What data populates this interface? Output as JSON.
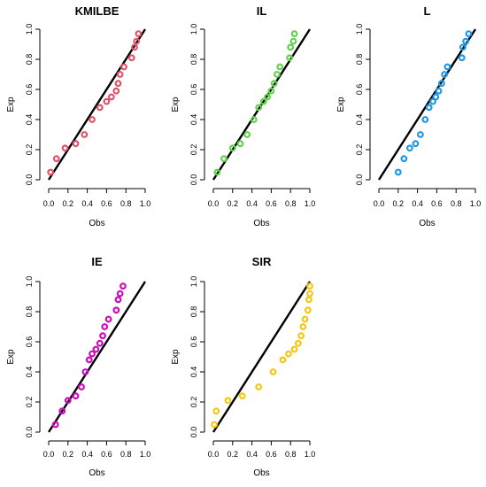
{
  "chart_data": [
    {
      "type": "scatter",
      "title": "KMILBE",
      "xlabel": "Obs",
      "ylabel": "Exp",
      "xlim": [
        0,
        1
      ],
      "ylim": [
        0,
        1
      ],
      "xticks": [
        "0.0",
        "0.2",
        "0.4",
        "0.6",
        "0.8",
        "1.0"
      ],
      "yticks": [
        "0.0",
        "0.2",
        "0.4",
        "0.6",
        "0.8",
        "1.0"
      ],
      "color": "#df536b",
      "reference_line": {
        "from": [
          0,
          0
        ],
        "to": [
          1,
          1
        ]
      },
      "points": {
        "x": [
          0.02,
          0.08,
          0.17,
          0.28,
          0.37,
          0.45,
          0.53,
          0.6,
          0.65,
          0.7,
          0.72,
          0.74,
          0.78,
          0.86,
          0.89,
          0.91,
          0.93
        ],
        "y": [
          0.05,
          0.14,
          0.21,
          0.24,
          0.3,
          0.4,
          0.48,
          0.52,
          0.55,
          0.59,
          0.64,
          0.7,
          0.75,
          0.81,
          0.88,
          0.92,
          0.97
        ]
      }
    },
    {
      "type": "scatter",
      "title": "IL",
      "xlabel": "Obs",
      "ylabel": "Exp",
      "xlim": [
        0,
        1
      ],
      "ylim": [
        0,
        1
      ],
      "xticks": [
        "0.0",
        "0.2",
        "0.4",
        "0.6",
        "0.8",
        "1.0"
      ],
      "yticks": [
        "0.0",
        "0.2",
        "0.4",
        "0.6",
        "0.8",
        "1.0"
      ],
      "color": "#61d04f",
      "reference_line": {
        "from": [
          0,
          0
        ],
        "to": [
          1,
          1
        ]
      },
      "points": {
        "x": [
          0.04,
          0.11,
          0.2,
          0.28,
          0.35,
          0.42,
          0.47,
          0.52,
          0.56,
          0.6,
          0.63,
          0.66,
          0.69,
          0.79,
          0.8,
          0.83,
          0.84
        ],
        "y": [
          0.05,
          0.14,
          0.21,
          0.24,
          0.3,
          0.4,
          0.48,
          0.52,
          0.55,
          0.59,
          0.64,
          0.7,
          0.75,
          0.81,
          0.88,
          0.92,
          0.97
        ]
      }
    },
    {
      "type": "scatter",
      "title": "L",
      "xlabel": "Obs",
      "ylabel": "Exp",
      "xlim": [
        0,
        1
      ],
      "ylim": [
        0,
        1
      ],
      "xticks": [
        "0.0",
        "0.2",
        "0.4",
        "0.6",
        "0.8",
        "1.0"
      ],
      "yticks": [
        "0.0",
        "0.2",
        "0.4",
        "0.6",
        "0.8",
        "1.0"
      ],
      "color": "#2297e6",
      "reference_line": {
        "from": [
          0,
          0
        ],
        "to": [
          1,
          1
        ]
      },
      "points": {
        "x": [
          0.2,
          0.26,
          0.32,
          0.38,
          0.43,
          0.48,
          0.52,
          0.56,
          0.59,
          0.62,
          0.65,
          0.68,
          0.71,
          0.86,
          0.87,
          0.9,
          0.93
        ],
        "y": [
          0.05,
          0.14,
          0.21,
          0.24,
          0.3,
          0.4,
          0.48,
          0.52,
          0.55,
          0.59,
          0.64,
          0.7,
          0.75,
          0.81,
          0.88,
          0.92,
          0.97
        ]
      }
    },
    {
      "type": "scatter",
      "title": "IE",
      "xlabel": "Obs",
      "ylabel": "Exp",
      "xlim": [
        0,
        1
      ],
      "ylim": [
        0,
        1
      ],
      "xticks": [
        "0.0",
        "0.2",
        "0.4",
        "0.6",
        "0.8",
        "1.0"
      ],
      "yticks": [
        "0.0",
        "0.2",
        "0.4",
        "0.6",
        "0.8",
        "1.0"
      ],
      "color": "#cd0bbc",
      "reference_line": {
        "from": [
          0,
          0
        ],
        "to": [
          1,
          1
        ]
      },
      "points": {
        "x": [
          0.07,
          0.14,
          0.2,
          0.28,
          0.34,
          0.38,
          0.42,
          0.45,
          0.49,
          0.53,
          0.56,
          0.58,
          0.62,
          0.7,
          0.72,
          0.74,
          0.77
        ],
        "y": [
          0.05,
          0.14,
          0.21,
          0.24,
          0.3,
          0.4,
          0.48,
          0.52,
          0.55,
          0.59,
          0.64,
          0.7,
          0.75,
          0.81,
          0.88,
          0.92,
          0.97
        ]
      }
    },
    {
      "type": "scatter",
      "title": "SIR",
      "xlabel": "Obs",
      "ylabel": "Exp",
      "xlim": [
        0,
        1
      ],
      "ylim": [
        0,
        1
      ],
      "xticks": [
        "0.0",
        "0.2",
        "0.4",
        "0.6",
        "0.8",
        "1.0"
      ],
      "yticks": [
        "0.0",
        "0.2",
        "0.4",
        "0.6",
        "0.8",
        "1.0"
      ],
      "color": "#f5c710",
      "reference_line": {
        "from": [
          0,
          0
        ],
        "to": [
          1,
          1
        ]
      },
      "points": {
        "x": [
          0.01,
          0.03,
          0.15,
          0.3,
          0.47,
          0.62,
          0.72,
          0.78,
          0.84,
          0.88,
          0.91,
          0.93,
          0.95,
          0.98,
          0.99,
          1.0,
          1.0
        ],
        "y": [
          0.05,
          0.14,
          0.21,
          0.24,
          0.3,
          0.4,
          0.48,
          0.52,
          0.55,
          0.59,
          0.64,
          0.7,
          0.75,
          0.81,
          0.88,
          0.92,
          0.97
        ]
      }
    }
  ]
}
